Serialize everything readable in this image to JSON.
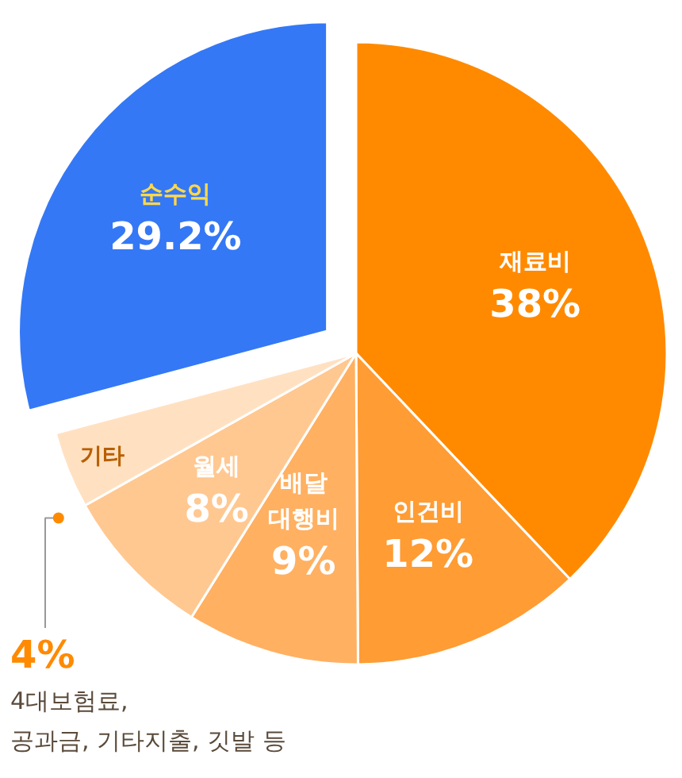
{
  "chart_data": {
    "type": "pie",
    "categories": [
      "재료비",
      "인건비",
      "배달\n대행비",
      "월세",
      "기타",
      "순수익"
    ],
    "values": [
      38,
      12,
      9,
      8,
      4,
      29.2
    ],
    "colors": [
      "#ff8a00",
      "#ff9c33",
      "#ffb061",
      "#ffc891",
      "#ffe1c2",
      "#3478f6"
    ],
    "value_labels": [
      "38%",
      "12%",
      "9%",
      "8%",
      "4%",
      "29.2%"
    ],
    "annotations": [
      "4대보험료,\n공과금, 기타지출, 깃발 등"
    ]
  }
}
